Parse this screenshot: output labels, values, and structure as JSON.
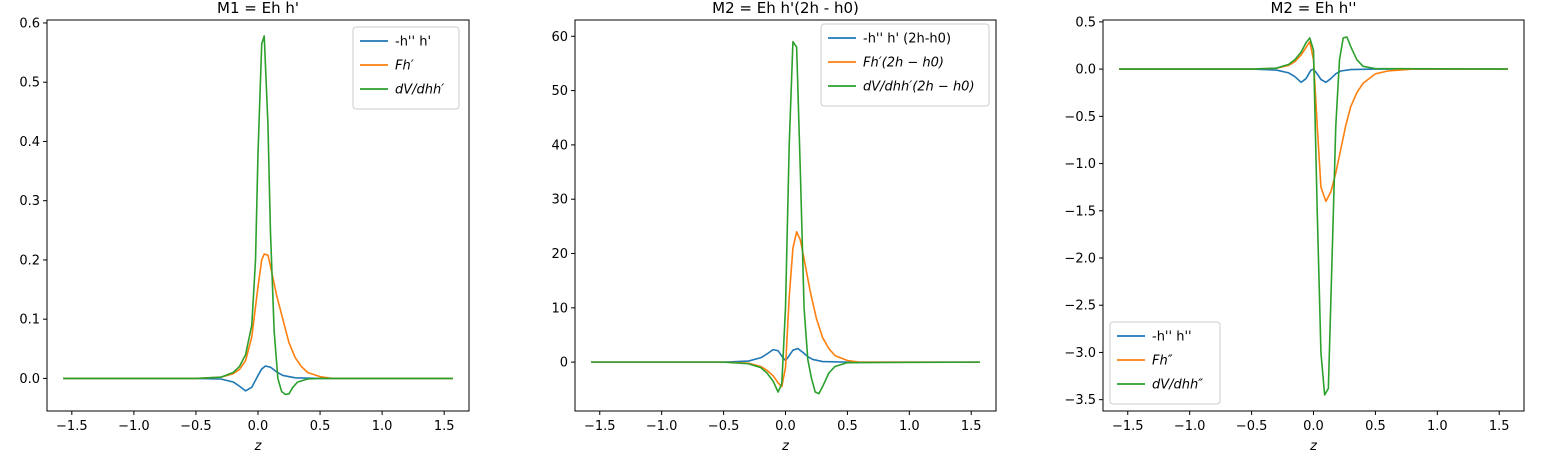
{
  "chart_data": [
    {
      "type": "line",
      "title": "M1 = Eh h'",
      "xlabel": "z",
      "ylabel": "",
      "xlim": [
        -1.7,
        1.7
      ],
      "ylim": [
        -0.055,
        0.605
      ],
      "xticks": [
        -1.5,
        -1.0,
        -0.5,
        0.0,
        0.5,
        1.0,
        1.5
      ],
      "xtick_labels": [
        "−1.5",
        "−1.0",
        "−0.5",
        "0.0",
        "0.5",
        "1.0",
        "1.5"
      ],
      "yticks": [
        0.0,
        0.1,
        0.2,
        0.3,
        0.4,
        0.5,
        0.6
      ],
      "ytick_labels": [
        "0.0",
        "0.1",
        "0.2",
        "0.3",
        "0.4",
        "0.5",
        "0.6"
      ],
      "legend_position": "top-right",
      "series": [
        {
          "name": "-h'' h'",
          "math": false,
          "color": "#1f77b4",
          "x": [
            -1.57,
            -0.5,
            -0.3,
            -0.2,
            -0.15,
            -0.1,
            -0.05,
            0.0,
            0.03,
            0.06,
            0.1,
            0.15,
            0.2,
            0.3,
            0.5,
            1.57
          ],
          "y": [
            0,
            0,
            -0.001,
            -0.006,
            -0.013,
            -0.021,
            -0.015,
            0.005,
            0.016,
            0.021,
            0.019,
            0.011,
            0.005,
            0.001,
            0,
            0
          ]
        },
        {
          "name": "Fh′",
          "math": true,
          "color": "#ff7f0e",
          "x": [
            -1.57,
            -0.5,
            -0.3,
            -0.2,
            -0.15,
            -0.1,
            -0.05,
            0.0,
            0.03,
            0.05,
            0.08,
            0.1,
            0.15,
            0.2,
            0.25,
            0.3,
            0.35,
            0.4,
            0.5,
            0.6,
            1.57
          ],
          "y": [
            0,
            0,
            0.002,
            0.008,
            0.015,
            0.03,
            0.07,
            0.155,
            0.2,
            0.21,
            0.208,
            0.19,
            0.14,
            0.1,
            0.06,
            0.035,
            0.02,
            0.01,
            0.003,
            0,
            0
          ]
        },
        {
          "name": "dV/dhh′",
          "math": true,
          "color": "#2ca02c",
          "x": [
            -1.57,
            -0.5,
            -0.3,
            -0.2,
            -0.15,
            -0.1,
            -0.05,
            -0.02,
            0.0,
            0.03,
            0.05,
            0.08,
            0.1,
            0.13,
            0.16,
            0.19,
            0.22,
            0.25,
            0.28,
            0.32,
            0.4,
            0.5,
            1.57
          ],
          "y": [
            0,
            0,
            0.002,
            0.01,
            0.02,
            0.04,
            0.09,
            0.2,
            0.38,
            0.565,
            0.578,
            0.43,
            0.25,
            0.08,
            0.0,
            -0.022,
            -0.027,
            -0.026,
            -0.015,
            -0.006,
            -0.001,
            0,
            0
          ]
        }
      ]
    },
    {
      "type": "line",
      "title": "M2 = Eh h'(2h - h0)",
      "xlabel": "z",
      "ylabel": "",
      "xlim": [
        -1.7,
        1.7
      ],
      "ylim": [
        -9,
        63
      ],
      "xticks": [
        -1.5,
        -1.0,
        -0.5,
        0.0,
        0.5,
        1.0,
        1.5
      ],
      "xtick_labels": [
        "−1.5",
        "−1.0",
        "−0.5",
        "0.0",
        "0.5",
        "1.0",
        "1.5"
      ],
      "yticks": [
        0,
        10,
        20,
        30,
        40,
        50,
        60
      ],
      "ytick_labels": [
        "0",
        "10",
        "20",
        "30",
        "40",
        "50",
        "60"
      ],
      "legend_position": "top-right",
      "series": [
        {
          "name": "-h'' h' (2h-h0)",
          "math": false,
          "color": "#1f77b4",
          "x": [
            -1.57,
            -0.5,
            -0.3,
            -0.2,
            -0.15,
            -0.1,
            -0.06,
            -0.02,
            0.0,
            0.03,
            0.06,
            0.1,
            0.14,
            0.18,
            0.22,
            0.3,
            0.5,
            1.57
          ],
          "y": [
            0,
            0,
            0.2,
            0.8,
            1.5,
            2.3,
            2.1,
            0.8,
            0.3,
            1.2,
            2.2,
            2.5,
            1.8,
            1.0,
            0.5,
            0.1,
            0,
            0
          ]
        },
        {
          "name": "Fh′(2h − h0)",
          "math": true,
          "color": "#ff7f0e",
          "x": [
            -1.57,
            -0.5,
            -0.3,
            -0.2,
            -0.15,
            -0.1,
            -0.06,
            -0.03,
            0.0,
            0.03,
            0.06,
            0.09,
            0.12,
            0.15,
            0.2,
            0.25,
            0.3,
            0.35,
            0.4,
            0.5,
            0.6,
            1.57
          ],
          "y": [
            0,
            0,
            -0.2,
            -0.8,
            -1.5,
            -2.5,
            -3.8,
            -4.5,
            -1.0,
            12,
            21,
            24,
            22.5,
            19,
            13,
            8,
            4.5,
            2.5,
            1.2,
            0.3,
            0,
            0
          ]
        },
        {
          "name": "dV/dhh′(2h − h0)",
          "math": true,
          "color": "#2ca02c",
          "x": [
            -1.57,
            -0.5,
            -0.3,
            -0.2,
            -0.15,
            -0.1,
            -0.06,
            -0.03,
            0.0,
            0.03,
            0.06,
            0.09,
            0.12,
            0.15,
            0.18,
            0.21,
            0.24,
            0.27,
            0.3,
            0.35,
            0.4,
            0.5,
            1.57
          ],
          "y": [
            0,
            0,
            -0.3,
            -1.0,
            -2.0,
            -3.5,
            -5.5,
            -4.0,
            10,
            40,
            59,
            58,
            35,
            10,
            0.5,
            -3,
            -5.5,
            -5.8,
            -4.5,
            -2.0,
            -0.8,
            -0.1,
            0
          ]
        }
      ]
    },
    {
      "type": "line",
      "title": "M2 = Eh h''",
      "xlabel": "z",
      "ylabel": "",
      "xlim": [
        -1.7,
        1.7
      ],
      "ylim": [
        -3.62,
        0.52
      ],
      "xticks": [
        -1.5,
        -1.0,
        -0.5,
        0.0,
        0.5,
        1.0,
        1.5
      ],
      "xtick_labels": [
        "−1.5",
        "−1.0",
        "−0.5",
        "0.0",
        "0.5",
        "1.0",
        "1.5"
      ],
      "yticks": [
        0.5,
        0.0,
        -0.5,
        -1.0,
        -1.5,
        -2.0,
        -2.5,
        -3.0,
        -3.5
      ],
      "ytick_labels": [
        "0.5",
        "0.0",
        "−0.5",
        "−1.0",
        "−1.5",
        "−2.0",
        "−2.5",
        "−3.0",
        "−3.5"
      ],
      "legend_position": "bottom-left",
      "series": [
        {
          "name": "-h'' h''",
          "math": false,
          "color": "#1f77b4",
          "x": [
            -1.57,
            -0.5,
            -0.3,
            -0.2,
            -0.15,
            -0.1,
            -0.06,
            -0.02,
            0.0,
            0.03,
            0.06,
            0.1,
            0.14,
            0.18,
            0.22,
            0.3,
            0.5,
            1.57
          ],
          "y": [
            0,
            0,
            -0.01,
            -0.04,
            -0.08,
            -0.14,
            -0.1,
            -0.01,
            0.0,
            -0.05,
            -0.11,
            -0.14,
            -0.1,
            -0.05,
            -0.02,
            -0.005,
            0,
            0
          ]
        },
        {
          "name": "Fh″",
          "math": true,
          "color": "#ff7f0e",
          "x": [
            -1.57,
            -0.5,
            -0.3,
            -0.2,
            -0.15,
            -0.1,
            -0.06,
            -0.03,
            0.0,
            0.03,
            0.06,
            0.1,
            0.14,
            0.18,
            0.22,
            0.26,
            0.3,
            0.35,
            0.4,
            0.5,
            0.6,
            0.8,
            1.57
          ],
          "y": [
            0,
            0,
            0.01,
            0.04,
            0.08,
            0.15,
            0.23,
            0.29,
            0.1,
            -0.6,
            -1.25,
            -1.4,
            -1.3,
            -1.1,
            -0.85,
            -0.6,
            -0.4,
            -0.25,
            -0.15,
            -0.05,
            -0.02,
            0,
            0
          ]
        },
        {
          "name": "dV/dhh″",
          "math": true,
          "color": "#2ca02c",
          "x": [
            -1.57,
            -0.5,
            -0.3,
            -0.2,
            -0.15,
            -0.1,
            -0.06,
            -0.03,
            0.0,
            0.03,
            0.06,
            0.09,
            0.12,
            0.15,
            0.18,
            0.21,
            0.24,
            0.27,
            0.3,
            0.35,
            0.4,
            0.5,
            1.57
          ],
          "y": [
            0,
            0,
            0.01,
            0.05,
            0.1,
            0.18,
            0.28,
            0.33,
            0.2,
            -1.5,
            -3.0,
            -3.45,
            -3.38,
            -2.0,
            -0.6,
            0.1,
            0.33,
            0.34,
            0.24,
            0.1,
            0.03,
            0.005,
            0
          ]
        }
      ]
    }
  ]
}
